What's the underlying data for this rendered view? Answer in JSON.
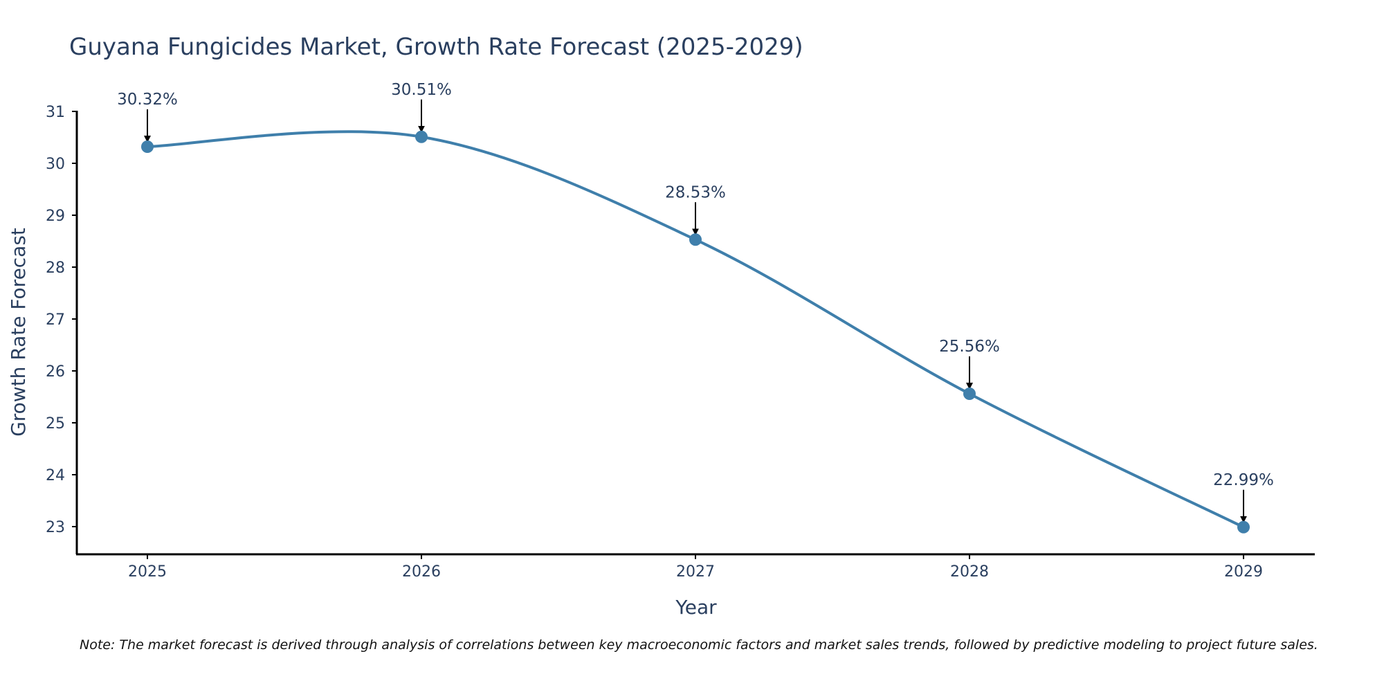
{
  "chart_data": {
    "type": "line",
    "title": "Guyana Fungicides Market, Growth Rate Forecast (2025-2029)",
    "xlabel": "Year",
    "ylabel": "Growth Rate Forecast",
    "categories": [
      "2025",
      "2026",
      "2027",
      "2028",
      "2029"
    ],
    "series": [
      {
        "name": "Growth Rate Forecast",
        "values": [
          30.32,
          30.51,
          28.53,
          25.56,
          22.99
        ]
      }
    ],
    "data_labels": [
      "30.32%",
      "30.51%",
      "28.53%",
      "25.56%",
      "22.99%"
    ],
    "y_ticks": [
      23,
      24,
      25,
      26,
      27,
      28,
      29,
      30,
      31
    ],
    "ylim": [
      22.45,
      31.0
    ],
    "grid": false,
    "line_shape": "spline",
    "colors": {
      "series": "#3f7fab",
      "text": "#2a3f5f",
      "axis": "#000000"
    }
  },
  "note": "Note: The market forecast is derived through analysis of correlations between key macroeconomic factors and market sales trends, followed by predictive modeling to project future sales."
}
